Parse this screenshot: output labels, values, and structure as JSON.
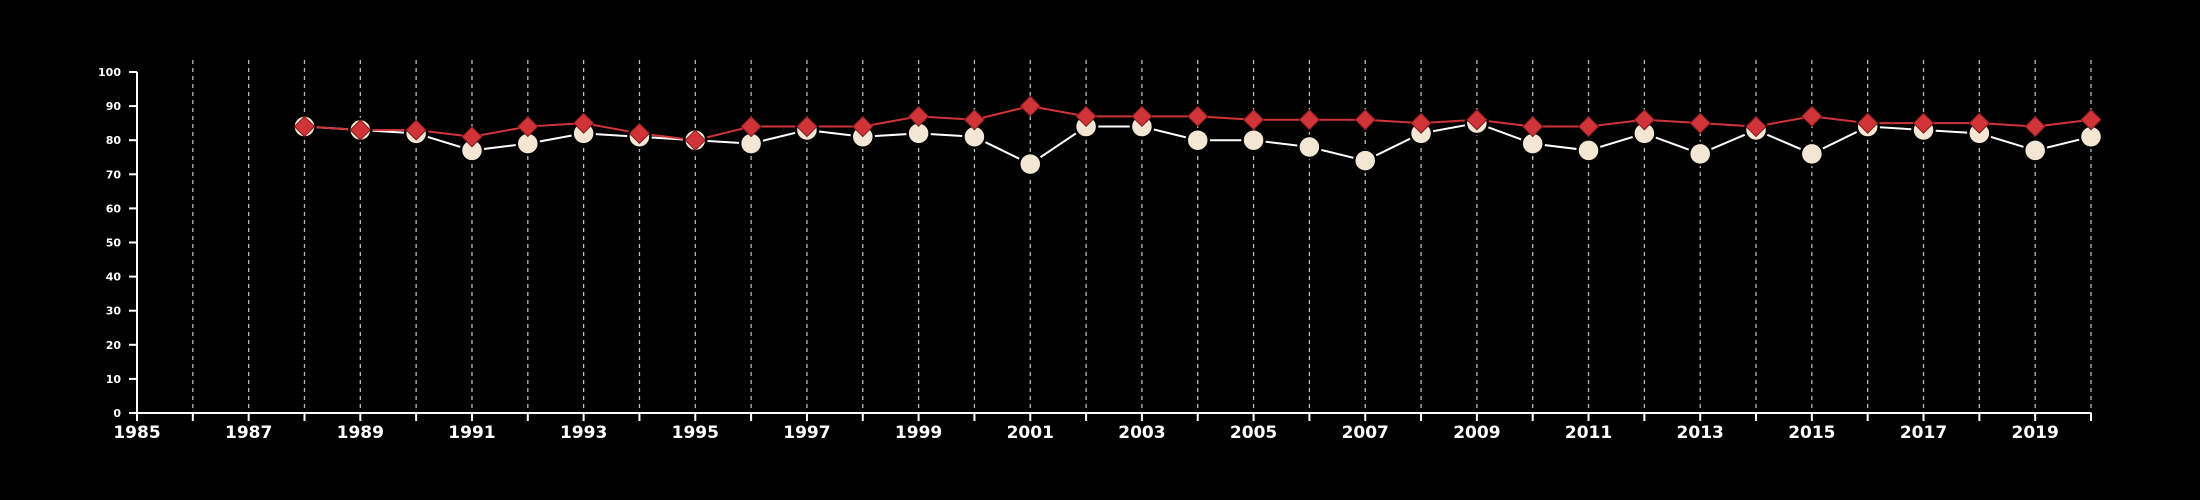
{
  "chart_data": {
    "type": "line",
    "title": "",
    "xlabel": "",
    "ylabel": "",
    "xlim": [
      1985,
      2020
    ],
    "ylim": [
      0,
      100
    ],
    "x_ticks": [
      "1985",
      "1987",
      "1989",
      "1991",
      "1993",
      "1995",
      "1997",
      "1999",
      "2001",
      "2003",
      "2005",
      "2007",
      "2009",
      "2011",
      "2013",
      "2015",
      "2017",
      "2019"
    ],
    "y_ticks": [
      "0",
      "10",
      "20",
      "30",
      "40",
      "50",
      "60",
      "70",
      "80",
      "90",
      "100"
    ],
    "grid": "vertical dashed at each year",
    "x": [
      1988,
      1989,
      1990,
      1991,
      1992,
      1993,
      1994,
      1995,
      1996,
      1997,
      1998,
      1999,
      2000,
      2001,
      2002,
      2003,
      2004,
      2005,
      2006,
      2007,
      2008,
      2009,
      2010,
      2011,
      2012,
      2013,
      2014,
      2015,
      2016,
      2017,
      2018,
      2019,
      2020
    ],
    "series": [
      {
        "marker": "diamond",
        "color": "#d13438",
        "values": [
          84,
          83,
          83,
          81,
          84,
          85,
          82,
          80,
          84,
          84,
          84,
          87,
          86,
          90,
          87,
          87,
          87,
          86,
          86,
          86,
          85,
          86,
          84,
          84,
          86,
          85,
          84,
          87,
          85,
          85,
          85,
          84,
          86
        ]
      },
      {
        "marker": "circle",
        "color": "#f3e6d3",
        "line_color": "#ffffff",
        "values": [
          84,
          83,
          82,
          77,
          79,
          82,
          81,
          80,
          79,
          83,
          81,
          82,
          81,
          73,
          84,
          84,
          80,
          80,
          78,
          74,
          82,
          85,
          79,
          77,
          82,
          76,
          83,
          76,
          84,
          83,
          82,
          77,
          81
        ]
      }
    ]
  }
}
